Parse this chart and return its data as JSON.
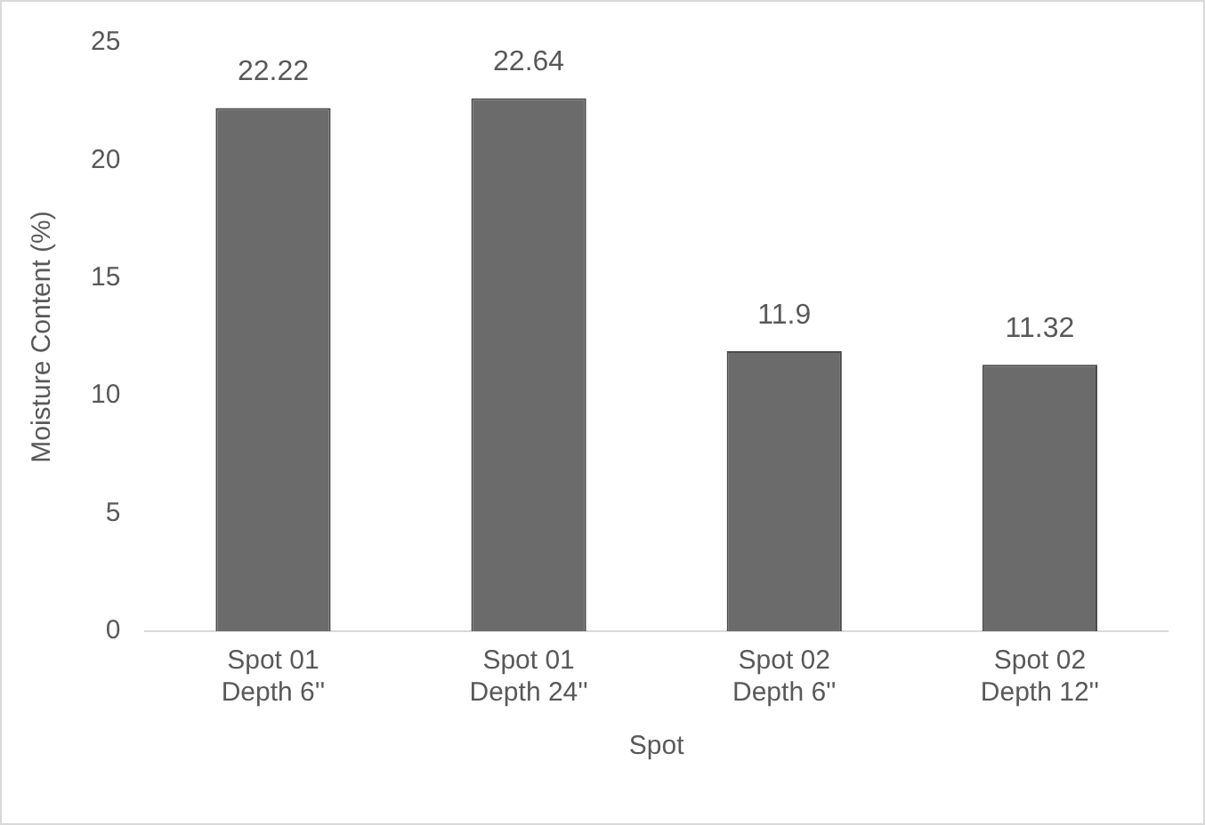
{
  "chart_data": {
    "type": "bar",
    "xlabel": "Spot",
    "ylabel": "Moisture Content (%)",
    "categories": [
      "Spot 01\nDepth 6''",
      "Spot 01\nDepth 24''",
      "Spot 02\nDepth 6''",
      "Spot 02\nDepth 12''"
    ],
    "values": [
      22.22,
      22.64,
      11.9,
      11.32
    ],
    "color": "#6b6b6b",
    "ylim": [
      0,
      25
    ],
    "yticks": [
      0,
      5,
      10,
      15,
      20,
      25
    ],
    "grid": false,
    "legend": false,
    "data_labels": true
  }
}
